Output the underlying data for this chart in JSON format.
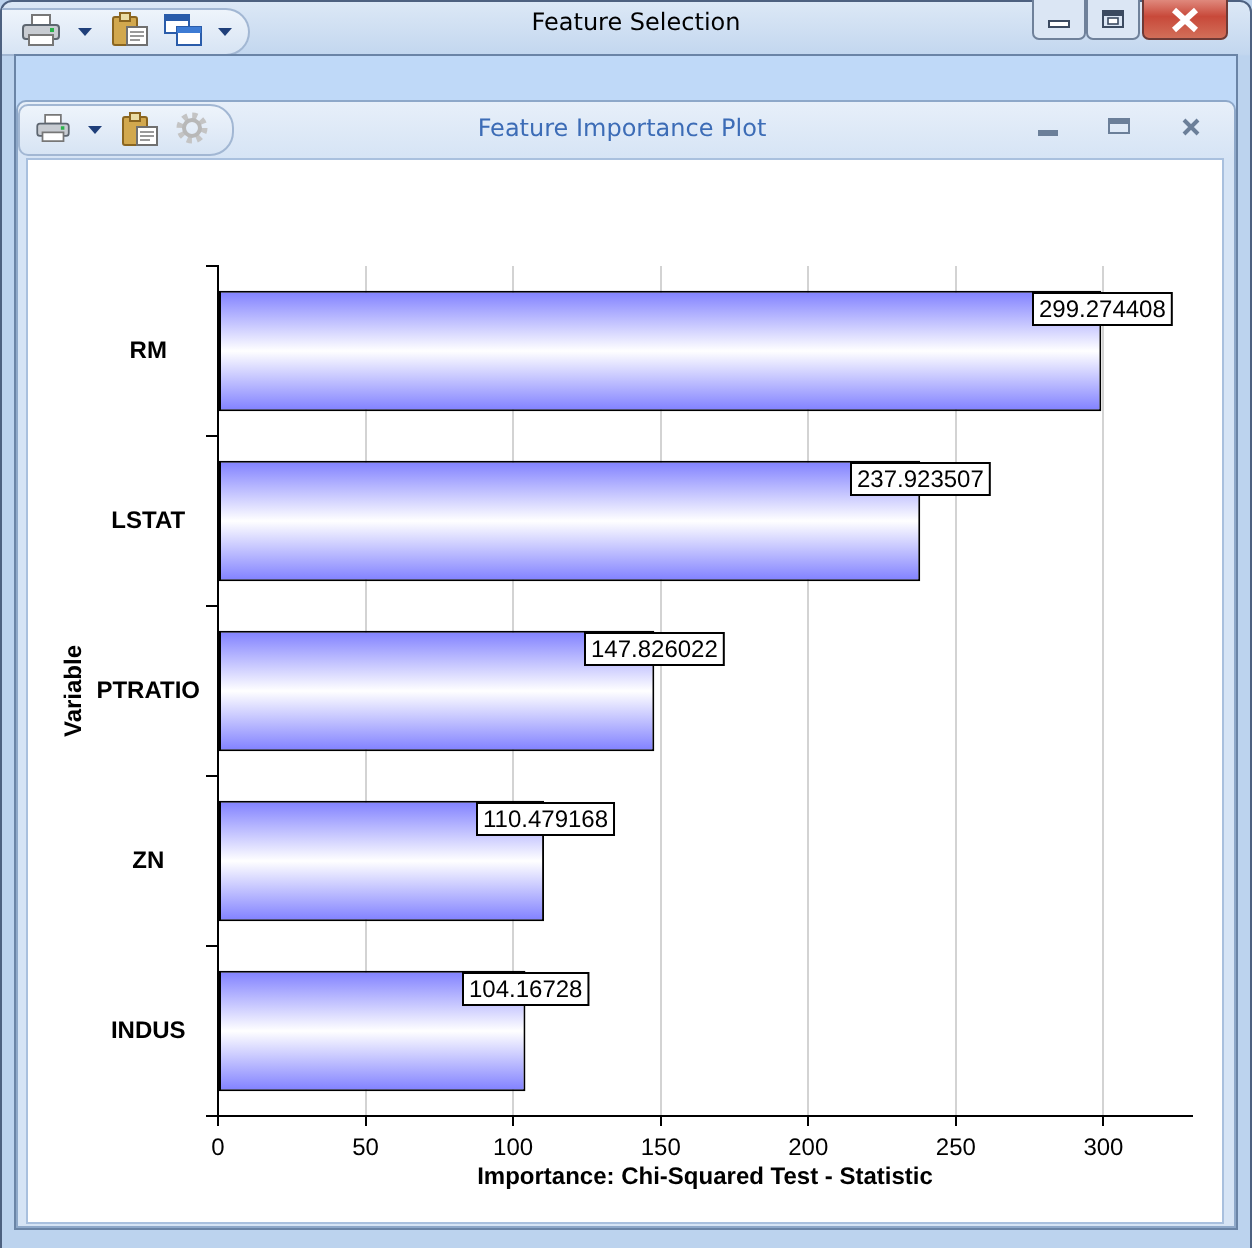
{
  "chart_data": {
    "type": "bar",
    "orientation": "horizontal",
    "title": "Feature Selection",
    "subtitle": "Feature Importance Plot",
    "xlabel": "Importance: Chi-Squared Test - Statistic",
    "ylabel": "Variable",
    "categories": [
      "RM",
      "LSTAT",
      "PTRATIO",
      "ZN",
      "INDUS"
    ],
    "values": [
      299.274408,
      237.923507,
      147.826022,
      110.479168,
      104.16728
    ],
    "color": "#7f7fff",
    "xlim": [
      0,
      330
    ],
    "xticks": [
      0,
      50,
      100,
      150,
      200,
      250,
      300
    ],
    "grid": "x",
    "data_labels": true
  }
}
